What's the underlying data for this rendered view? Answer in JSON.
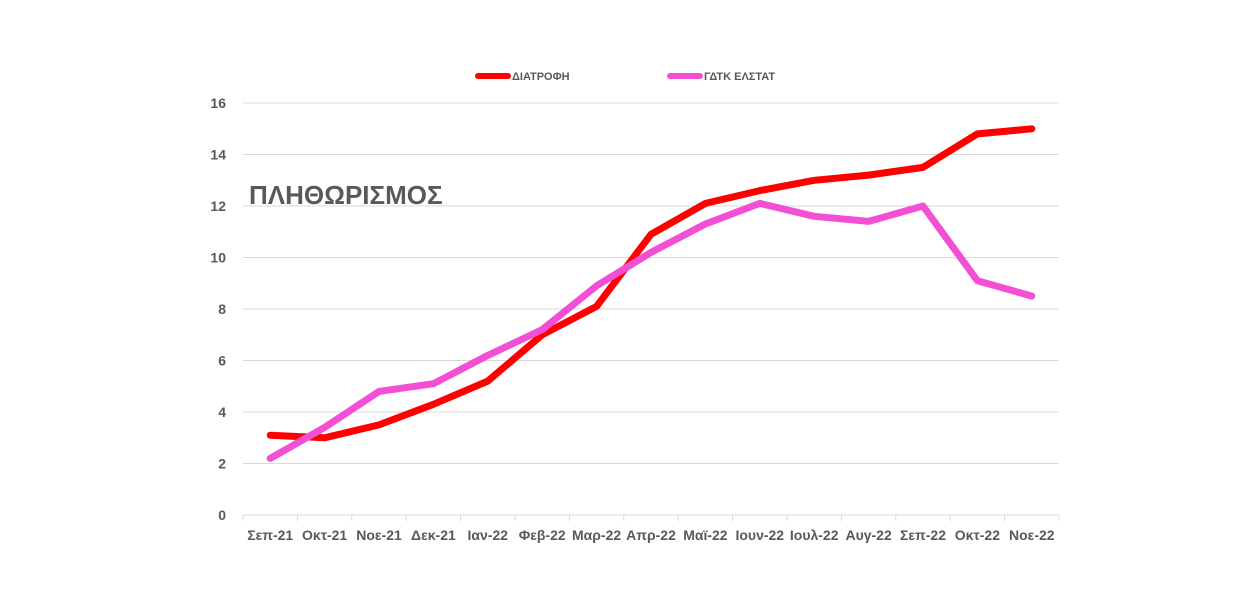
{
  "chart_data": {
    "type": "line",
    "title": "",
    "xlabel": "",
    "ylabel": "",
    "annotation": "ΠΛΗΘΩΡΙΣΜΟΣ",
    "categories": [
      "Σεπ-21",
      "Οκτ-21",
      "Νοε-21",
      "Δεκ-21",
      "Ιαν-22",
      "Φεβ-22",
      "Μαρ-22",
      "Απρ-22",
      "Μαϊ-22",
      "Ιουν-22",
      "Ιουλ-22",
      "Αυγ-22",
      "Σεπ-22",
      "Οκτ-22",
      "Νοε-22"
    ],
    "ylim": [
      0,
      16
    ],
    "yticks": [
      "0",
      "2",
      "4",
      "6",
      "8",
      "10",
      "12",
      "14",
      "16"
    ],
    "grid": true,
    "legend_position": "top",
    "series": [
      {
        "name": "ΔΙΑΤΡΟΦΗ",
        "color": "#ff0000",
        "values": [
          3.1,
          3.0,
          3.5,
          4.3,
          5.2,
          7.0,
          8.1,
          10.9,
          12.1,
          12.6,
          13.0,
          13.2,
          13.5,
          14.8,
          15.0
        ]
      },
      {
        "name": "ΓΔΤΚ ΕΛΣΤΑΤ",
        "color": "#f24fd5",
        "values": [
          2.2,
          3.4,
          4.8,
          5.1,
          6.2,
          7.2,
          8.9,
          10.2,
          11.3,
          12.1,
          11.6,
          11.4,
          12.0,
          9.1,
          8.5
        ]
      }
    ]
  }
}
